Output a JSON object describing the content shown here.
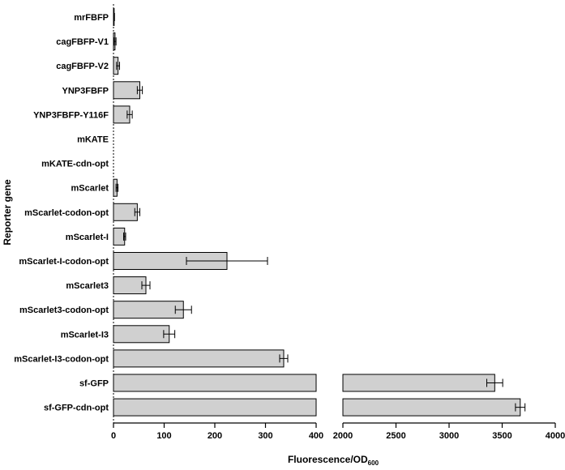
{
  "chart_data": {
    "type": "bar",
    "orientation": "horizontal",
    "title": "",
    "xlabel": "Fluorescence/OD",
    "xlabel_subscript": "600",
    "ylabel": "Reporter gene",
    "x_segments": [
      {
        "range": [
          0,
          400
        ],
        "ticks": [
          0,
          100,
          200,
          300,
          400
        ]
      },
      {
        "range": [
          2000,
          4000
        ],
        "ticks": [
          2000,
          2500,
          3000,
          3500,
          4000
        ]
      }
    ],
    "categories": [
      "mrFBFP",
      "cagFBFP-V1",
      "cagFBFP-V2",
      "YNP3FBFP",
      "YNP3FBFP-Y116F",
      "mKATE",
      "mKATE-cdn-opt",
      "mScarlet",
      "mScarlet-codon-opt",
      "mScarlet-I",
      "mScarlet-I-codon-opt",
      "mScarlet3",
      "mScarlet3-codon-opt",
      "mScarlet-I3",
      "mScarlet-I3-codon-opt",
      "sf-GFP",
      "sf-GFP-cdn-opt"
    ],
    "values": [
      1,
      3,
      9,
      52,
      32,
      0,
      0,
      7,
      47,
      22,
      224,
      64,
      138,
      110,
      336,
      3430,
      3670
    ],
    "errors": [
      1,
      2,
      3,
      5,
      5,
      0,
      0,
      2,
      5,
      2,
      80,
      8,
      16,
      11,
      8,
      75,
      45
    ]
  }
}
